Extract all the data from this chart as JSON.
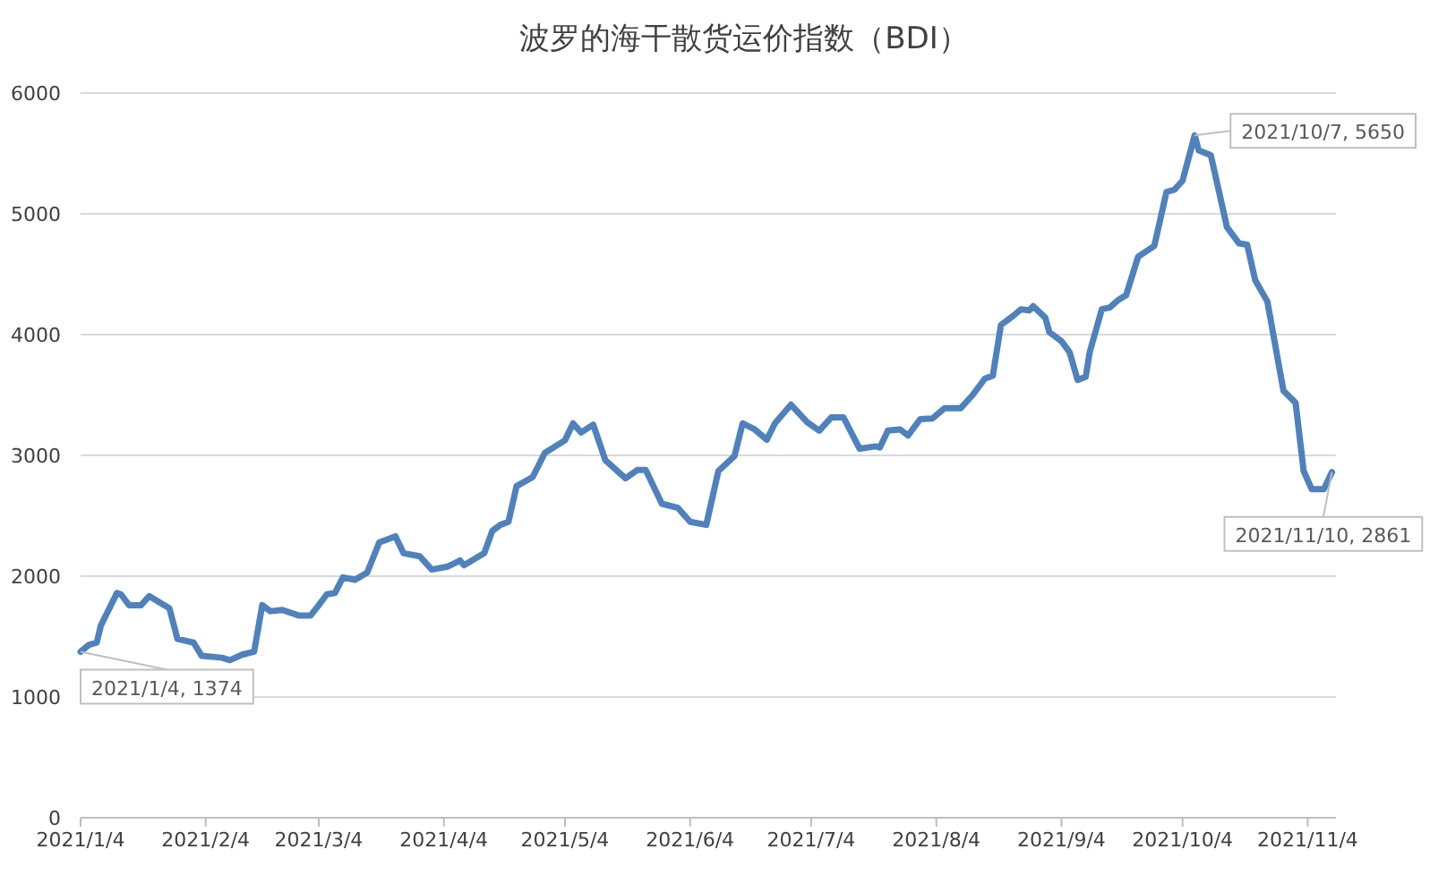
{
  "chart_data": {
    "type": "line",
    "title": "波罗的海干散货运价指数（BDI）",
    "x": [
      "2021-01-04",
      "2021-01-06",
      "2021-01-08",
      "2021-01-09",
      "2021-01-11",
      "2021-01-13",
      "2021-01-14",
      "2021-01-16",
      "2021-01-19",
      "2021-01-21",
      "2021-01-24",
      "2021-01-26",
      "2021-01-28",
      "2021-02-01",
      "2021-02-03",
      "2021-02-08",
      "2021-02-10",
      "2021-02-13",
      "2021-02-16",
      "2021-02-18",
      "2021-02-20",
      "2021-02-23",
      "2021-02-27",
      "2021-03-02",
      "2021-03-04",
      "2021-03-06",
      "2021-03-08",
      "2021-03-10",
      "2021-03-13",
      "2021-03-16",
      "2021-03-19",
      "2021-03-23",
      "2021-03-25",
      "2021-03-29",
      "2021-04-01",
      "2021-04-05",
      "2021-04-08",
      "2021-04-09",
      "2021-04-14",
      "2021-04-16",
      "2021-04-18",
      "2021-04-20",
      "2021-04-22",
      "2021-04-26",
      "2021-04-29",
      "2021-05-04",
      "2021-05-06",
      "2021-05-08",
      "2021-05-11",
      "2021-05-14",
      "2021-05-19",
      "2021-05-22",
      "2021-05-24",
      "2021-05-28",
      "2021-06-01",
      "2021-06-04",
      "2021-06-08",
      "2021-06-11",
      "2021-06-15",
      "2021-06-17",
      "2021-06-20",
      "2021-06-23",
      "2021-06-25",
      "2021-06-29",
      "2021-07-03",
      "2021-07-06",
      "2021-07-09",
      "2021-07-12",
      "2021-07-16",
      "2021-07-20",
      "2021-07-21",
      "2021-07-23",
      "2021-07-26",
      "2021-07-28",
      "2021-07-31",
      "2021-08-03",
      "2021-08-06",
      "2021-08-10",
      "2021-08-13",
      "2021-08-16",
      "2021-08-18",
      "2021-08-20",
      "2021-08-23",
      "2021-08-25",
      "2021-08-27",
      "2021-08-28",
      "2021-08-31",
      "2021-09-01",
      "2021-09-04",
      "2021-09-06",
      "2021-09-08",
      "2021-09-10",
      "2021-09-11",
      "2021-09-14",
      "2021-09-16",
      "2021-09-18",
      "2021-09-20",
      "2021-09-23",
      "2021-09-27",
      "2021-09-30",
      "2021-10-02",
      "2021-10-04",
      "2021-10-07",
      "2021-10-08",
      "2021-10-11",
      "2021-10-15",
      "2021-10-18",
      "2021-10-20",
      "2021-10-22",
      "2021-10-25",
      "2021-10-29",
      "2021-11-01",
      "2021-11-03",
      "2021-11-05",
      "2021-11-08",
      "2021-11-10"
    ],
    "values": [
      1374,
      1430,
      1450,
      1590,
      1725,
      1860,
      1850,
      1760,
      1760,
      1835,
      1775,
      1735,
      1480,
      1450,
      1340,
      1325,
      1305,
      1350,
      1375,
      1760,
      1710,
      1720,
      1675,
      1675,
      1760,
      1850,
      1860,
      1990,
      1970,
      2030,
      2280,
      2330,
      2190,
      2165,
      2055,
      2080,
      2130,
      2090,
      2190,
      2375,
      2425,
      2450,
      2745,
      2820,
      3020,
      3125,
      3265,
      3190,
      3255,
      2960,
      2810,
      2880,
      2880,
      2600,
      2565,
      2450,
      2425,
      2870,
      2995,
      3265,
      3215,
      3130,
      3265,
      3420,
      3275,
      3205,
      3315,
      3315,
      3055,
      3075,
      3065,
      3205,
      3215,
      3165,
      3300,
      3305,
      3390,
      3390,
      3500,
      3635,
      3660,
      4080,
      4155,
      4210,
      4200,
      4235,
      4140,
      4020,
      3945,
      3855,
      3625,
      3650,
      3855,
      4210,
      4225,
      4285,
      4325,
      4645,
      4735,
      5180,
      5200,
      5275,
      5650,
      5525,
      5485,
      4890,
      4755,
      4745,
      4450,
      4275,
      3535,
      3435,
      2870,
      2720,
      2720,
      2861
    ],
    "color": "#4f81bd",
    "xlim": [
      "2021-01-04",
      "2021-11-11"
    ],
    "xticks": [
      {
        "value": "2021-01-04",
        "label": "2021/1/4"
      },
      {
        "value": "2021-02-04",
        "label": "2021/2/4"
      },
      {
        "value": "2021-03-04",
        "label": "2021/3/4"
      },
      {
        "value": "2021-04-04",
        "label": "2021/4/4"
      },
      {
        "value": "2021-05-04",
        "label": "2021/5/4"
      },
      {
        "value": "2021-06-04",
        "label": "2021/6/4"
      },
      {
        "value": "2021-07-04",
        "label": "2021/7/4"
      },
      {
        "value": "2021-08-04",
        "label": "2021/8/4"
      },
      {
        "value": "2021-09-04",
        "label": "2021/9/4"
      },
      {
        "value": "2021-10-04",
        "label": "2021/10/4"
      },
      {
        "value": "2021-11-04",
        "label": "2021/11/4"
      }
    ],
    "ylim": [
      0,
      6000
    ],
    "yticks": [
      0,
      1000,
      2000,
      3000,
      4000,
      5000,
      6000
    ],
    "grid": "y",
    "marker": "none",
    "line_style": "solid",
    "annotations": [
      {
        "text": "2021/1/4, 1374",
        "x": "2021-01-04",
        "y": 1374
      },
      {
        "text": "2021/10/7, 5650",
        "x": "2021-10-07",
        "y": 5650
      },
      {
        "text": "2021/11/10, 2861",
        "x": "2021-11-10",
        "y": 2861
      }
    ]
  }
}
